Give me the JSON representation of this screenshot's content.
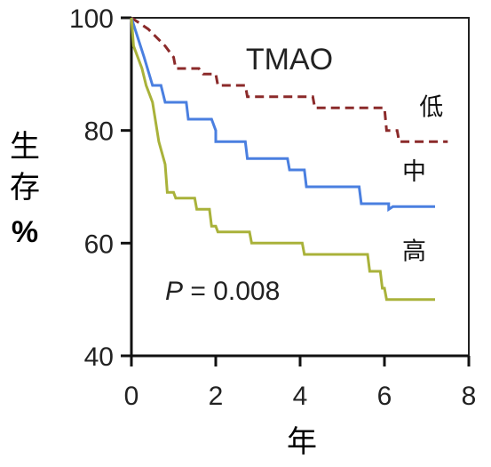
{
  "chart_data": {
    "type": "line",
    "title": "TMAO",
    "xlabel": "年",
    "ylabel_lines": [
      "生",
      "存",
      "%"
    ],
    "xlim": [
      0,
      8
    ],
    "ylim": [
      40,
      100
    ],
    "xticks": [
      "0",
      "2",
      "4",
      "6",
      "8"
    ],
    "yticks": [
      "40",
      "60",
      "80",
      "100"
    ],
    "annotation": {
      "prefix": "P",
      "text": " = 0.008"
    },
    "series": [
      {
        "name": "低",
        "color": "#8b2a2a",
        "dash": true,
        "points": [
          [
            0,
            100
          ],
          [
            0.4,
            98
          ],
          [
            0.8,
            95
          ],
          [
            1.0,
            93
          ],
          [
            1.05,
            91
          ],
          [
            1.6,
            91
          ],
          [
            1.7,
            90
          ],
          [
            2.0,
            90
          ],
          [
            2.05,
            88
          ],
          [
            2.7,
            88
          ],
          [
            2.75,
            86
          ],
          [
            4.3,
            86
          ],
          [
            4.35,
            84
          ],
          [
            6.0,
            84
          ],
          [
            6.05,
            80
          ],
          [
            6.3,
            80
          ],
          [
            6.35,
            78
          ],
          [
            7.5,
            78
          ]
        ]
      },
      {
        "name": "中",
        "color": "#4a7fe0",
        "dash": false,
        "points": [
          [
            0,
            100
          ],
          [
            0.3,
            93
          ],
          [
            0.5,
            88
          ],
          [
            0.7,
            88
          ],
          [
            0.8,
            85
          ],
          [
            1.3,
            85
          ],
          [
            1.35,
            82
          ],
          [
            1.9,
            82
          ],
          [
            2.0,
            80
          ],
          [
            2.0,
            78
          ],
          [
            2.7,
            78
          ],
          [
            2.75,
            75
          ],
          [
            3.7,
            75
          ],
          [
            3.75,
            73
          ],
          [
            4.1,
            73
          ],
          [
            4.15,
            70
          ],
          [
            5.4,
            70
          ],
          [
            5.45,
            67
          ],
          [
            6.1,
            67
          ],
          [
            6.1,
            66
          ],
          [
            6.2,
            66.5
          ],
          [
            7.2,
            66.5
          ]
        ]
      },
      {
        "name": "高",
        "color": "#a9b23a",
        "dash": false,
        "points": [
          [
            0,
            100
          ],
          [
            0.05,
            95
          ],
          [
            0.25,
            91
          ],
          [
            0.35,
            88
          ],
          [
            0.5,
            85
          ],
          [
            0.65,
            78
          ],
          [
            0.8,
            74
          ],
          [
            0.85,
            69
          ],
          [
            1.0,
            69
          ],
          [
            1.05,
            68
          ],
          [
            1.5,
            68
          ],
          [
            1.55,
            66
          ],
          [
            1.85,
            66
          ],
          [
            1.9,
            63
          ],
          [
            2.0,
            63
          ],
          [
            2.05,
            62
          ],
          [
            2.8,
            62
          ],
          [
            2.85,
            60
          ],
          [
            4.05,
            60
          ],
          [
            4.1,
            58
          ],
          [
            5.6,
            58
          ],
          [
            5.65,
            55
          ],
          [
            5.9,
            55
          ],
          [
            5.95,
            52
          ],
          [
            6.0,
            52
          ],
          [
            6.05,
            50
          ],
          [
            7.2,
            50
          ]
        ]
      }
    ]
  }
}
